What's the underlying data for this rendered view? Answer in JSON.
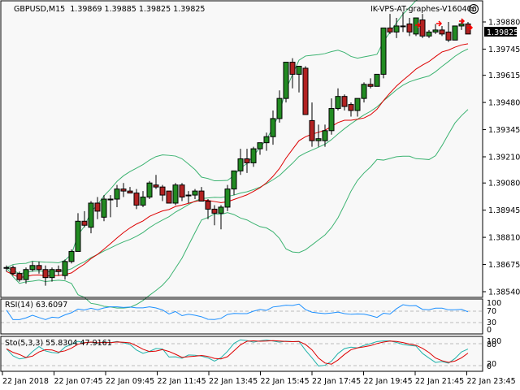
{
  "header": {
    "symbol_info": "GBPUSD,M15  1.39869 1.39885 1.39825 1.39825",
    "indicator_title": "IK-VPS-AT-graphes-V160406",
    "smiley_icon": "☺"
  },
  "price_axis": {
    "labels": [
      "1.39880",
      "1.39745",
      "1.39615",
      "1.39480",
      "1.39345",
      "1.39210",
      "1.39080",
      "1.38945",
      "1.38810",
      "1.38675",
      "1.38540"
    ],
    "current_price": "1.39825"
  },
  "rsi_panel": {
    "label": "RSI(14) 63.6097",
    "levels": [
      "100",
      "70",
      "30",
      "0"
    ]
  },
  "sto_panel": {
    "label": "Sto(5,3,3) 55.8304 47.9161",
    "levels": [
      "100",
      "80",
      "20",
      "0"
    ]
  },
  "time_axis": {
    "labels": [
      "22 Jan 2018",
      "22 Jan 07:45",
      "22 Jan 09:45",
      "22 Jan 11:45",
      "22 Jan 13:45",
      "22 Jan 15:45",
      "22 Jan 17:45",
      "22 Jan 19:45",
      "22 Jan 21:45",
      "22 Jan 23:45"
    ]
  },
  "colors": {
    "background": "#f8f8f8",
    "bull": "#228b22",
    "bear": "#b22222",
    "bands": "#3cb371",
    "ma": "#dd0000",
    "rsi": "#1e90ff",
    "sto_main": "#20b2aa",
    "sto_signal": "#dd0000"
  },
  "chart_data": {
    "type": "candlestick",
    "title": "GBPUSD,M15",
    "ohlc_header": {
      "open": 1.39869,
      "high": 1.39885,
      "low": 1.39825,
      "close": 1.39825
    },
    "ylim": [
      1.3854,
      1.3993
    ],
    "x_tick_labels": [
      "22 Jan 2018",
      "22 Jan 07:45",
      "22 Jan 09:45",
      "22 Jan 11:45",
      "22 Jan 13:45",
      "22 Jan 15:45",
      "22 Jan 17:45",
      "22 Jan 19:45",
      "22 Jan 21:45",
      "22 Jan 23:45"
    ],
    "candles": [
      [
        1.3866,
        1.3867,
        1.3864,
        1.3866
      ],
      [
        1.3866,
        1.3867,
        1.3862,
        1.3863
      ],
      [
        1.3863,
        1.3864,
        1.3859,
        1.386
      ],
      [
        1.386,
        1.3866,
        1.3858,
        1.3865
      ],
      [
        1.3865,
        1.3869,
        1.3864,
        1.3867
      ],
      [
        1.3867,
        1.3869,
        1.3863,
        1.3865
      ],
      [
        1.3865,
        1.3867,
        1.3857,
        1.3861
      ],
      [
        1.3861,
        1.3866,
        1.3859,
        1.3865
      ],
      [
        1.3865,
        1.3867,
        1.3862,
        1.3864
      ],
      [
        1.3862,
        1.387,
        1.386,
        1.3869
      ],
      [
        1.3869,
        1.3875,
        1.3868,
        1.3874
      ],
      [
        1.3874,
        1.3893,
        1.3874,
        1.3889
      ],
      [
        1.3889,
        1.3894,
        1.3886,
        1.3887
      ],
      [
        1.3886,
        1.3899,
        1.3883,
        1.3898
      ],
      [
        1.3898,
        1.3901,
        1.389,
        1.3894
      ],
      [
        1.3891,
        1.3902,
        1.3889,
        1.39
      ],
      [
        1.39,
        1.3902,
        1.3891,
        1.39
      ],
      [
        1.39,
        1.3907,
        1.3896,
        1.3905
      ],
      [
        1.3905,
        1.3908,
        1.3901,
        1.3904
      ],
      [
        1.3904,
        1.3906,
        1.3903,
        1.3903
      ],
      [
        1.3903,
        1.3905,
        1.3895,
        1.3897
      ],
      [
        1.3897,
        1.3904,
        1.3896,
        1.3901
      ],
      [
        1.3901,
        1.3909,
        1.39,
        1.3908
      ],
      [
        1.3907,
        1.3912,
        1.3905,
        1.3906
      ],
      [
        1.3906,
        1.3907,
        1.3899,
        1.3902
      ],
      [
        1.3904,
        1.3903,
        1.3899,
        1.3898
      ],
      [
        1.3898,
        1.3908,
        1.3897,
        1.3907
      ],
      [
        1.3907,
        1.3908,
        1.3899,
        1.3901
      ],
      [
        1.3902,
        1.3904,
        1.3898,
        1.3902
      ],
      [
        1.3902,
        1.3905,
        1.39,
        1.3904
      ],
      [
        1.3904,
        1.3906,
        1.3899,
        1.3899
      ],
      [
        1.3899,
        1.39,
        1.389,
        1.3895
      ],
      [
        1.3895,
        1.3897,
        1.3887,
        1.3893
      ],
      [
        1.3893,
        1.3897,
        1.3885,
        1.3896
      ],
      [
        1.3896,
        1.3907,
        1.3894,
        1.3905
      ],
      [
        1.3905,
        1.3911,
        1.3902,
        1.3914
      ],
      [
        1.3914,
        1.3925,
        1.3912,
        1.392
      ],
      [
        1.392,
        1.3925,
        1.3913,
        1.3918
      ],
      [
        1.3918,
        1.3926,
        1.3916,
        1.3925
      ],
      [
        1.3925,
        1.3928,
        1.3922,
        1.3928
      ],
      [
        1.3928,
        1.3933,
        1.3924,
        1.3931
      ],
      [
        1.3931,
        1.3944,
        1.3927,
        1.394
      ],
      [
        1.394,
        1.3954,
        1.3938,
        1.395
      ],
      [
        1.395,
        1.3968,
        1.3948,
        1.3968
      ],
      [
        1.3968,
        1.397,
        1.3955,
        1.3962
      ],
      [
        1.3962,
        1.3965,
        1.3953,
        1.3966
      ],
      [
        1.3965,
        1.3966,
        1.3942,
        1.3942
      ],
      [
        1.3939,
        1.3948,
        1.3926,
        1.3929
      ],
      [
        1.3929,
        1.3937,
        1.3926,
        1.393
      ],
      [
        1.3929,
        1.3937,
        1.3926,
        1.3934
      ],
      [
        1.3934,
        1.395,
        1.3932,
        1.3945
      ],
      [
        1.3945,
        1.3955,
        1.3944,
        1.3951
      ],
      [
        1.3951,
        1.3952,
        1.3944,
        1.3946
      ],
      [
        1.3947,
        1.3948,
        1.3941,
        1.3944
      ],
      [
        1.3944,
        1.395,
        1.3941,
        1.395
      ],
      [
        1.395,
        1.3958,
        1.3948,
        1.3957
      ],
      [
        1.3957,
        1.396,
        1.3955,
        1.3956
      ],
      [
        1.3956,
        1.3962,
        1.3956,
        1.3962
      ],
      [
        1.3962,
        1.3985,
        1.396,
        1.3985
      ],
      [
        1.3985,
        1.3992,
        1.3982,
        1.3983
      ],
      [
        1.3983,
        1.399,
        1.398,
        1.3986
      ],
      [
        1.3986,
        1.3993,
        1.3983,
        1.3986
      ],
      [
        1.3987,
        1.399,
        1.3981,
        1.3983
      ],
      [
        1.3982,
        1.3988,
        1.3981,
        1.399
      ],
      [
        1.3989,
        1.3992,
        1.398,
        1.3981
      ],
      [
        1.3981,
        1.3984,
        1.398,
        1.3983
      ],
      [
        1.3983,
        1.3987,
        1.3982,
        1.3984
      ],
      [
        1.3984,
        1.3986,
        1.3981,
        1.3982
      ],
      [
        1.3983,
        1.3988,
        1.3978,
        1.3979
      ],
      [
        1.3979,
        1.3986,
        1.3979,
        1.3986
      ],
      [
        1.3986,
        1.3989,
        1.3984,
        1.3987
      ],
      [
        1.3987,
        1.3988,
        1.3982,
        1.3982
      ]
    ],
    "series": [
      {
        "name": "Bollinger upper",
        "color": "#3cb371"
      },
      {
        "name": "Bollinger middle",
        "color": "#3cb371"
      },
      {
        "name": "Bollinger lower",
        "color": "#3cb371"
      },
      {
        "name": "Moving average",
        "color": "#dd0000"
      }
    ],
    "rsi": {
      "name": "RSI(14)",
      "last": 63.6097,
      "levels": [
        70,
        30
      ],
      "range": [
        0,
        100
      ]
    },
    "stochastic": {
      "name": "Sto(5,3,3)",
      "main_last": 55.8304,
      "signal_last": 47.9161,
      "levels": [
        80,
        20
      ],
      "range": [
        0,
        100
      ]
    }
  }
}
